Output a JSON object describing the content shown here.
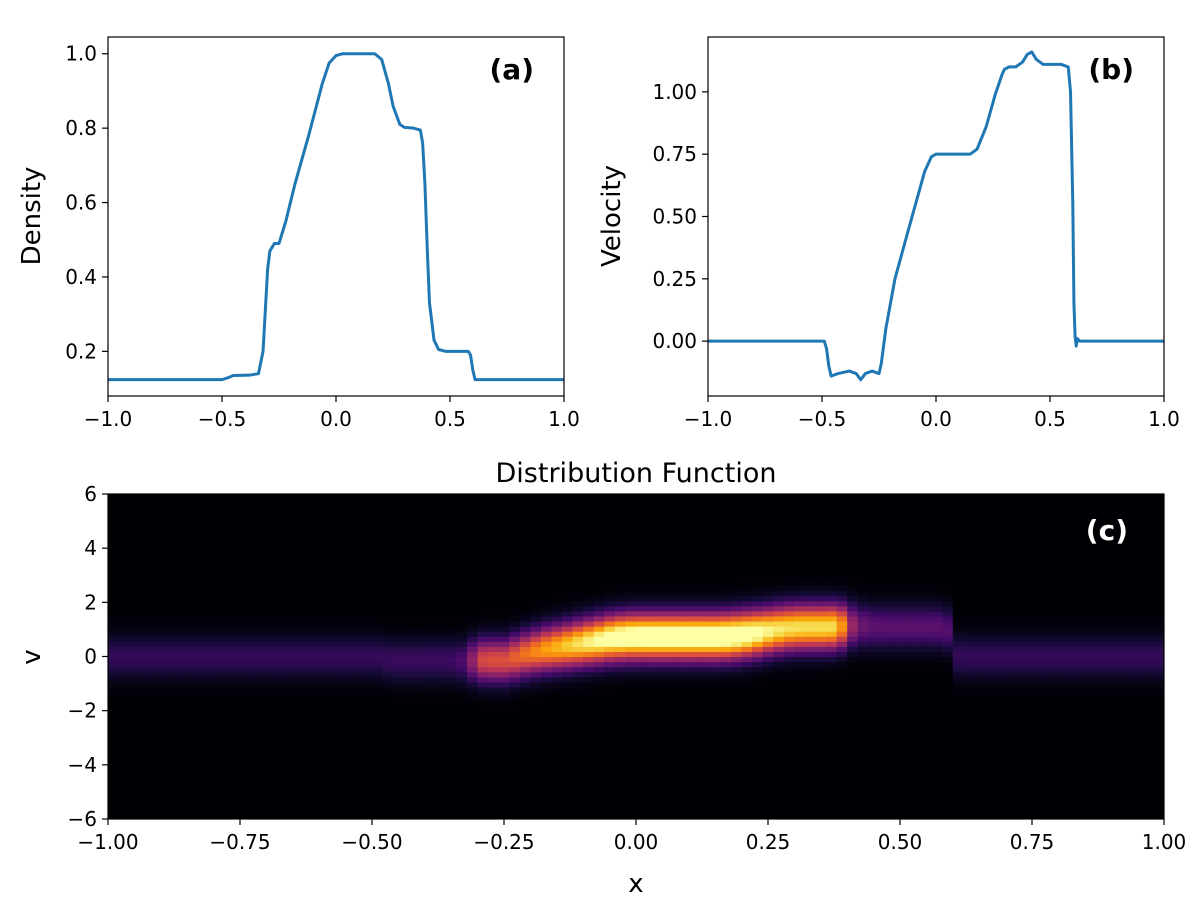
{
  "colors": {
    "line": "#1f77b4",
    "axis": "#000000",
    "panel_label_dark": "#000000",
    "panel_label_light": "#ffffff"
  },
  "chart_data": [
    {
      "id": "a",
      "type": "line",
      "panel_label": "(a)",
      "title": "",
      "xlabel": "",
      "ylabel": "Density",
      "xlim": [
        -1.0,
        1.0
      ],
      "ylim": [
        0.08,
        1.045
      ],
      "xticks": [
        -1.0,
        -0.5,
        0.0,
        0.5,
        1.0
      ],
      "xtick_labels": [
        "−1.0",
        "−0.5",
        "0.0",
        "0.5",
        "1.0"
      ],
      "yticks": [
        0.2,
        0.4,
        0.6,
        0.8,
        1.0
      ],
      "ytick_labels": [
        "0.2",
        "0.4",
        "0.6",
        "0.8",
        "1.0"
      ],
      "series": [
        {
          "name": "density",
          "x": [
            -1.0,
            -0.5,
            -0.47,
            -0.45,
            -0.38,
            -0.34,
            -0.32,
            -0.3,
            -0.29,
            -0.27,
            -0.25,
            -0.22,
            -0.18,
            -0.12,
            -0.06,
            -0.03,
            0.0,
            0.03,
            0.1,
            0.17,
            0.2,
            0.23,
            0.25,
            0.28,
            0.3,
            0.34,
            0.37,
            0.38,
            0.39,
            0.4,
            0.41,
            0.43,
            0.45,
            0.48,
            0.52,
            0.58,
            0.59,
            0.6,
            0.61,
            1.0
          ],
          "y": [
            0.124,
            0.124,
            0.13,
            0.135,
            0.136,
            0.14,
            0.2,
            0.42,
            0.47,
            0.49,
            0.49,
            0.55,
            0.65,
            0.78,
            0.92,
            0.975,
            0.995,
            1.0,
            1.0,
            1.0,
            0.985,
            0.92,
            0.86,
            0.81,
            0.802,
            0.8,
            0.795,
            0.76,
            0.65,
            0.48,
            0.33,
            0.23,
            0.205,
            0.2,
            0.2,
            0.2,
            0.19,
            0.15,
            0.124,
            0.124
          ]
        }
      ]
    },
    {
      "id": "b",
      "type": "line",
      "panel_label": "(b)",
      "title": "",
      "xlabel": "",
      "ylabel": "Velocity",
      "xlim": [
        -1.0,
        1.0
      ],
      "ylim": [
        -0.22,
        1.22
      ],
      "xticks": [
        -1.0,
        -0.5,
        0.0,
        0.5,
        1.0
      ],
      "xtick_labels": [
        "−1.0",
        "−0.5",
        "0.0",
        "0.5",
        "1.0"
      ],
      "yticks": [
        0.0,
        0.25,
        0.5,
        0.75,
        1.0
      ],
      "ytick_labels": [
        "0.00",
        "0.25",
        "0.50",
        "0.75",
        "1.00"
      ],
      "series": [
        {
          "name": "velocity",
          "x": [
            -1.0,
            -0.49,
            -0.48,
            -0.47,
            -0.46,
            -0.43,
            -0.38,
            -0.35,
            -0.33,
            -0.31,
            -0.28,
            -0.25,
            -0.24,
            -0.22,
            -0.18,
            -0.12,
            -0.05,
            -0.02,
            0.0,
            0.05,
            0.15,
            0.18,
            0.22,
            0.26,
            0.29,
            0.3,
            0.32,
            0.35,
            0.38,
            0.4,
            0.42,
            0.44,
            0.47,
            0.55,
            0.58,
            0.59,
            0.6,
            0.605,
            0.61,
            0.615,
            0.62,
            0.63,
            1.0
          ],
          "y": [
            0.0,
            0.0,
            -0.03,
            -0.1,
            -0.14,
            -0.13,
            -0.12,
            -0.13,
            -0.155,
            -0.13,
            -0.12,
            -0.13,
            -0.09,
            0.05,
            0.25,
            0.45,
            0.68,
            0.74,
            0.75,
            0.75,
            0.75,
            0.77,
            0.86,
            0.99,
            1.07,
            1.09,
            1.1,
            1.1,
            1.12,
            1.15,
            1.16,
            1.13,
            1.11,
            1.11,
            1.1,
            1.0,
            0.55,
            0.15,
            0.02,
            -0.02,
            0.01,
            0.0,
            0.0
          ]
        }
      ]
    },
    {
      "id": "c",
      "type": "heatmap",
      "panel_label": "(c)",
      "title": "Distribution Function",
      "xlabel": "x",
      "ylabel": "v",
      "xlim": [
        -1.0,
        1.0
      ],
      "ylim": [
        -6,
        6
      ],
      "xticks": [
        -1.0,
        -0.75,
        -0.5,
        -0.25,
        0.0,
        0.25,
        0.5,
        0.75,
        1.0
      ],
      "xtick_labels": [
        "−1.00",
        "−0.75",
        "−0.50",
        "−0.25",
        "0.00",
        "0.25",
        "0.50",
        "0.75",
        "1.00"
      ],
      "yticks": [
        -6,
        -4,
        -2,
        0,
        2,
        4,
        6
      ],
      "ytick_labels": [
        "−6",
        "−4",
        "−2",
        "0",
        "2",
        "4",
        "6"
      ],
      "colormap": "inferno",
      "description_fields": {
        "peak_value": 1.0,
        "background_value": 0.0
      }
    }
  ]
}
